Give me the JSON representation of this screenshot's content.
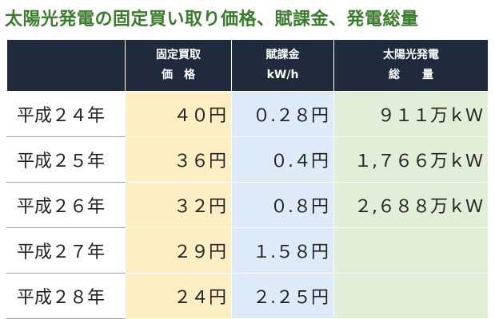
{
  "title": "太陽光発電の固定買い取り価格、賦課金、発電総量",
  "headers": [
    {
      "line1": "",
      "line2": ""
    },
    {
      "line1": "固定買取",
      "line2": "価　格"
    },
    {
      "line1": "賦課金",
      "line2": "kW/h"
    },
    {
      "line1": "太陽光発電",
      "line2": "総　　量"
    }
  ],
  "rows": [
    {
      "year": "平成２４年",
      "price": "４０円",
      "levy": "０.２８円",
      "generation": "９１１万ｋＷ"
    },
    {
      "year": "平成２５年",
      "price": "３６円",
      "levy": "０.４円",
      "generation": "１,７６６万ｋＷ"
    },
    {
      "year": "平成２６年",
      "price": "３２円",
      "levy": "０.８円",
      "generation": "２,６８８万ｋＷ"
    },
    {
      "year": "平成２７年",
      "price": "２９円",
      "levy": "１.５８円",
      "generation": ""
    },
    {
      "year": "平成２８年",
      "price": "２４円",
      "levy": "２.２５円",
      "generation": ""
    }
  ],
  "colors": {
    "title": "#3a7b2c",
    "header_bg": "#1f2a3d",
    "price_bg": "#fdeec4",
    "levy_bg": "#ddeaf7",
    "generation_bg": "#e2efd8"
  }
}
